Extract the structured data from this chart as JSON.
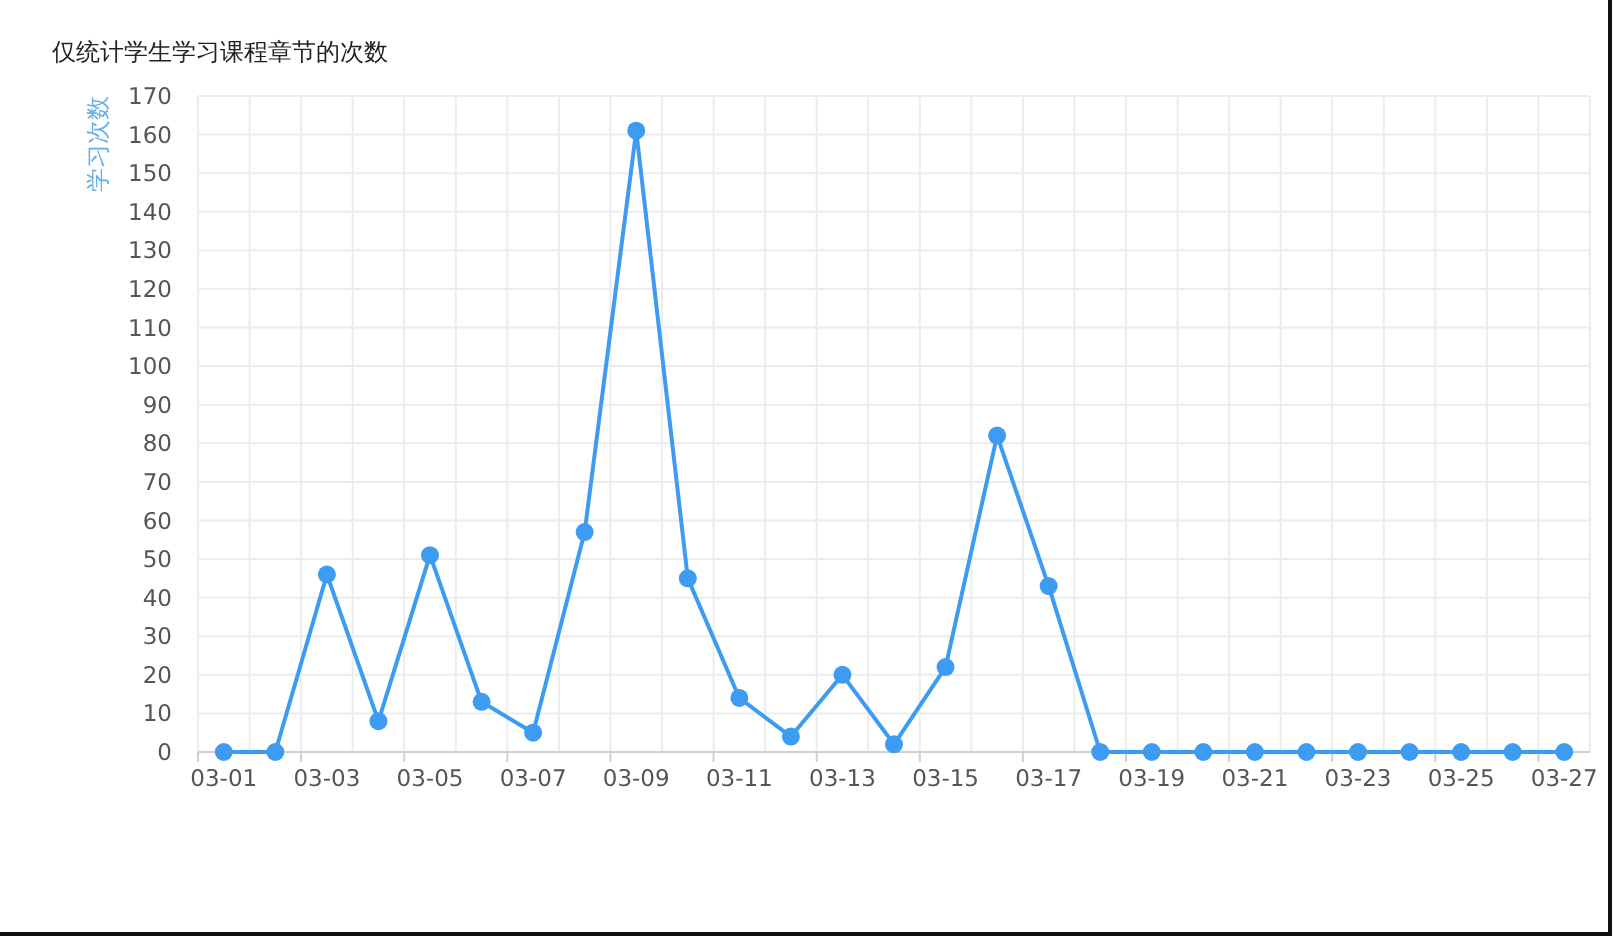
{
  "chart_data": {
    "type": "line",
    "title": "仅统计学生学习课程章节的次数",
    "ylabel": "学习次数",
    "categories": [
      "03-01",
      null,
      "03-03",
      null,
      "03-05",
      null,
      "03-07",
      null,
      "03-09",
      null,
      "03-11",
      null,
      "03-13",
      null,
      "03-15",
      null,
      "03-17",
      null,
      "03-19",
      null,
      "03-21",
      null,
      "03-23",
      null,
      "03-25",
      null,
      "03-27"
    ],
    "series": [
      {
        "color": "#3d9cf2",
        "values": [
          0,
          0,
          46,
          8,
          51,
          13,
          5,
          57,
          161,
          45,
          14,
          4,
          20,
          2,
          22,
          82,
          43,
          0,
          0,
          0,
          0,
          0,
          0,
          0,
          0,
          0,
          0
        ]
      }
    ],
    "ylim": [
      0,
      170
    ],
    "yticks": [
      0,
      10,
      20,
      30,
      40,
      50,
      60,
      70,
      80,
      90,
      100,
      110,
      120,
      130,
      140,
      150,
      160,
      170
    ],
    "grid": true,
    "marker": "circle",
    "line_style": "solid"
  }
}
